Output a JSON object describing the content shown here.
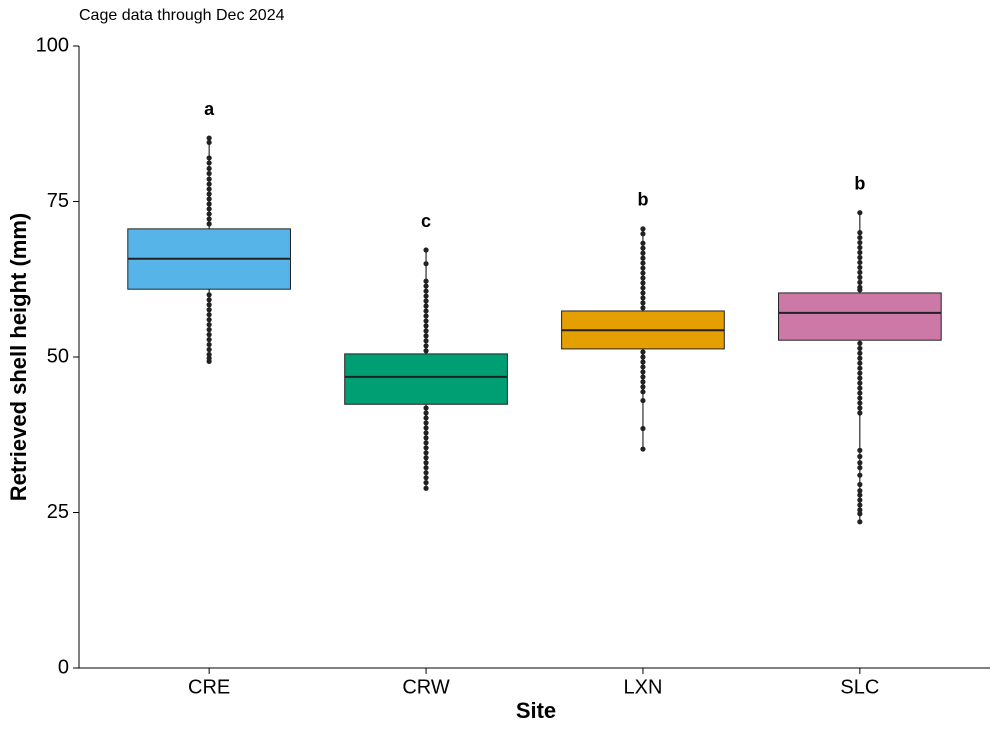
{
  "chart_data": {
    "type": "box",
    "subtitle": "Cage data through Dec 2024",
    "x_label": "Site",
    "y_label": "Retrieved shell height (mm)",
    "categories": [
      "CRE",
      "CRW",
      "LXN",
      "SLC"
    ],
    "ylim": [
      0,
      100
    ],
    "yticks": [
      0,
      25,
      50,
      75,
      100
    ],
    "boxes": [
      {
        "q1": 60.9,
        "median": 65.8,
        "q3": 70.6,
        "whisker_low": 49.3,
        "whisker_high": 85.2,
        "letter": "a",
        "color": "#56B4E9",
        "outliers": [
          85.2,
          84.5,
          82,
          81.2,
          80.3,
          79.5,
          78.6,
          77.8,
          77,
          76.2,
          75.4,
          74.6,
          73.8,
          73,
          72.2,
          71.4,
          60,
          59.2,
          58.4,
          57.6,
          56.8,
          56,
          55.2,
          54.4,
          53.6,
          52.8,
          52,
          51.2,
          50.4,
          49.8,
          49.3
        ]
      },
      {
        "q1": 42.4,
        "median": 46.8,
        "q3": 50.5,
        "whisker_low": 28.9,
        "whisker_high": 67.2,
        "letter": "c",
        "color": "#009E73",
        "outliers": [
          67.2,
          65,
          62.2,
          61.4,
          60.6,
          59.8,
          59,
          58.2,
          57.4,
          56.6,
          55.8,
          55,
          54.2,
          53.4,
          52.6,
          51.8,
          51,
          41.8,
          41,
          40.2,
          39.4,
          38.6,
          37.8,
          37,
          36.2,
          35.4,
          34.6,
          33.8,
          33,
          32.2,
          31.4,
          30.6,
          29.8,
          28.9
        ]
      },
      {
        "q1": 51.3,
        "median": 54.3,
        "q3": 57.4,
        "whisker_low": 35.2,
        "whisker_high": 70.6,
        "letter": "b",
        "color": "#E69F00",
        "outliers": [
          70.6,
          69.8,
          68.3,
          67.5,
          66.7,
          65.9,
          65.1,
          64.3,
          63.5,
          62.7,
          61.9,
          61.1,
          60.3,
          59.5,
          58.7,
          57.9,
          50.8,
          50,
          49.2,
          48.4,
          47.6,
          46.8,
          46,
          45.2,
          44.4,
          43,
          38.5,
          35.2
        ]
      },
      {
        "q1": 52.7,
        "median": 57.1,
        "q3": 60.3,
        "whisker_low": 23.5,
        "whisker_high": 73.2,
        "letter": "b",
        "color": "#CC79A7",
        "outliers": [
          73.2,
          70,
          69.2,
          68.4,
          67.6,
          66.8,
          66,
          65.2,
          64.4,
          63.6,
          62.8,
          62,
          61.2,
          60.8,
          52.2,
          51.4,
          50.6,
          49.8,
          49,
          48.2,
          47.4,
          46.6,
          45.8,
          45,
          44.2,
          43.4,
          42.6,
          41.8,
          41,
          35,
          34,
          33,
          32.2,
          31,
          29.5,
          28.5,
          27.8,
          27,
          26.2,
          25.4,
          24.8,
          23.5
        ]
      }
    ]
  }
}
